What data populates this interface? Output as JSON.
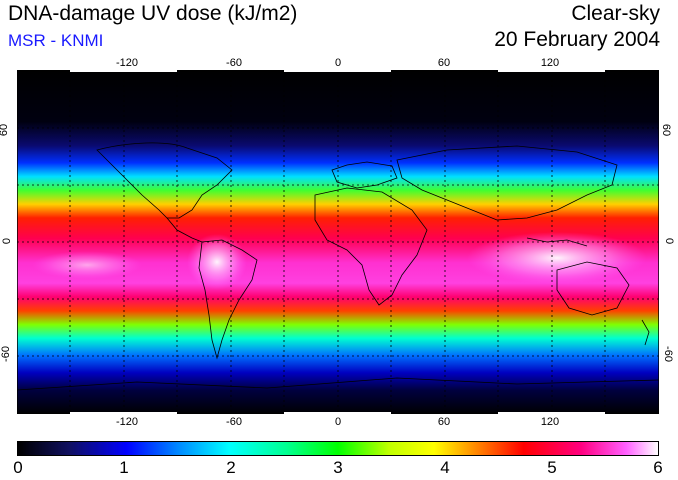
{
  "header": {
    "title": "DNA-damage UV dose (kJ/m2)",
    "subtitle": "MSR - KNMI",
    "sky_condition": "Clear-sky",
    "date": "20 February 2004"
  },
  "map": {
    "projection": "equirectangular",
    "lon_ticks_top": [
      "-120",
      "-60",
      "0",
      "60",
      "120"
    ],
    "lon_ticks_bottom": [
      "-120",
      "-60",
      "0",
      "60",
      "120"
    ],
    "lat_ticks_left": [
      "60",
      "0",
      "-60"
    ],
    "lat_ticks_right": [
      "60",
      "0",
      "-60"
    ],
    "field_description": "Global clear-sky DNA-damage UV dose; maximum (pink/white, about 5.5-6) near 5-25 S, lowest (black) toward the poles",
    "colors": {
      "background": "#ffffff",
      "subtitle": "#1a1aff",
      "max": "#ffffff",
      "high": "#ff00ff",
      "min": "#000000"
    }
  },
  "colorbar": {
    "labels": [
      "0",
      "1",
      "2",
      "3",
      "4",
      "5",
      "6"
    ],
    "min": 0,
    "max": 6,
    "unit": "kJ/m2"
  }
}
